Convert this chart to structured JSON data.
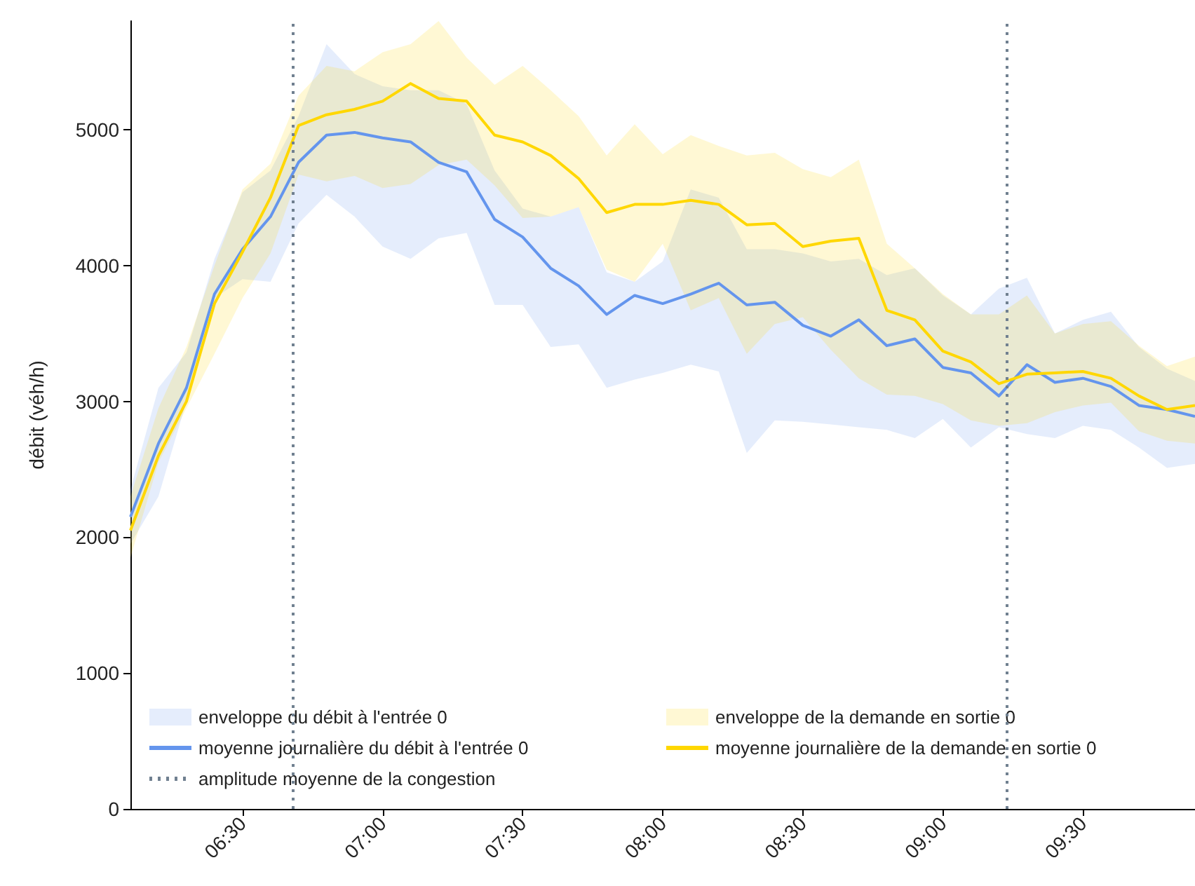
{
  "chart_data": {
    "type": "line",
    "ylabel": "débit (véh/h)",
    "x": [
      6.1,
      6.2,
      6.3,
      6.4,
      6.5,
      6.6,
      6.7,
      6.8,
      6.9,
      7.0,
      7.1,
      7.2,
      7.3,
      7.4,
      7.5,
      7.6,
      7.7,
      7.8,
      7.9,
      8.0,
      8.1,
      8.2,
      8.3,
      8.4,
      8.5,
      8.6,
      8.7,
      8.8,
      8.9,
      9.0,
      9.1,
      9.2,
      9.3,
      9.4,
      9.5,
      9.6,
      9.7,
      9.8,
      9.9
    ],
    "xlim": [
      6.1,
      9.9
    ],
    "xticks": [
      {
        "value": 6.5,
        "label": "06:30"
      },
      {
        "value": 7,
        "label": "07:00"
      },
      {
        "value": 7.5,
        "label": "07:30"
      },
      {
        "value": 8,
        "label": "08:00"
      },
      {
        "value": 8.5,
        "label": "08:30"
      },
      {
        "value": 9,
        "label": "09:00"
      },
      {
        "value": 9.5,
        "label": "09:30"
      }
    ],
    "ylim": [
      0,
      5800
    ],
    "yticks": [
      0,
      1000,
      2000,
      3000,
      4000,
      5000
    ],
    "series": [
      {
        "name": "moyenne journalière du débit à l'entrée 0",
        "color": "#6495ed",
        "values": [
          2150,
          2690,
          3100,
          3790,
          4120,
          4360,
          4760,
          4960,
          4980,
          4940,
          4910,
          4760,
          4690,
          4340,
          4210,
          3980,
          3850,
          3640,
          3780,
          3720,
          3790,
          3870,
          3710,
          3730,
          3560,
          3480,
          3600,
          3410,
          3460,
          3250,
          3210,
          3040,
          3270,
          3140,
          3170,
          3110,
          2970,
          2940,
          2890
        ],
        "lower": [
          1950,
          2300,
          3000,
          3760,
          3900,
          3880,
          4310,
          4520,
          4360,
          4140,
          4050,
          4200,
          4240,
          3710,
          3710,
          3400,
          3420,
          3100,
          3160,
          3210,
          3270,
          3220,
          2620,
          2860,
          2850,
          2830,
          2810,
          2790,
          2730,
          2870,
          2660,
          2810,
          2760,
          2730,
          2820,
          2790,
          2660,
          2510,
          2540
        ],
        "upper": [
          2350,
          3100,
          3360,
          4050,
          4540,
          4700,
          5100,
          5630,
          5410,
          5320,
          5290,
          5290,
          5190,
          4700,
          4420,
          4360,
          4430,
          3950,
          3880,
          4030,
          4560,
          4500,
          4120,
          4120,
          4090,
          4030,
          4050,
          3930,
          3980,
          3780,
          3640,
          3830,
          3910,
          3500,
          3600,
          3660,
          3400,
          3240,
          3150
        ]
      },
      {
        "name": "moyenne journalière de la demande en sortie 0",
        "color": "#ffd700",
        "values": [
          2050,
          2600,
          3000,
          3720,
          4100,
          4500,
          5030,
          5110,
          5150,
          5210,
          5340,
          5230,
          5210,
          4960,
          4910,
          4810,
          4640,
          4390,
          4450,
          4450,
          4480,
          4450,
          4300,
          4310,
          4140,
          4180,
          4200,
          3670,
          3600,
          3370,
          3290,
          3130,
          3200,
          3210,
          3220,
          3170,
          3040,
          2940,
          2970
        ],
        "lower": [
          1850,
          2550,
          2950,
          3350,
          3760,
          4090,
          4670,
          4620,
          4660,
          4570,
          4600,
          4740,
          4780,
          4590,
          4350,
          4360,
          4430,
          3970,
          3880,
          4160,
          3670,
          3760,
          3350,
          3570,
          3620,
          3380,
          3170,
          3050,
          3040,
          2980,
          2860,
          2820,
          2840,
          2920,
          2970,
          2990,
          2780,
          2710,
          2690
        ],
        "upper": [
          2300,
          2950,
          3400,
          4000,
          4560,
          4750,
          5250,
          5470,
          5430,
          5570,
          5630,
          5800,
          5530,
          5330,
          5470,
          5290,
          5100,
          4810,
          5040,
          4820,
          4960,
          4880,
          4810,
          4830,
          4710,
          4650,
          4780,
          4160,
          3980,
          3790,
          3640,
          3640,
          3780,
          3500,
          3570,
          3590,
          3410,
          3260,
          3330
        ]
      }
    ],
    "annotations": [
      "enveloppe du débit à l'entrée 0",
      "enveloppe de la demande en sortie 0"
    ],
    "ref_lines": [
      {
        "axis": "x",
        "value": 6.6833,
        "label": "amplitude moyenne de la congestion",
        "color": "#708090",
        "line_style": "dotted"
      },
      {
        "axis": "x",
        "value": 9.2333,
        "label": null,
        "color": "#708090",
        "line_style": "dotted"
      }
    ],
    "legend": "lower left",
    "marker": "none",
    "line_style": "solid"
  }
}
